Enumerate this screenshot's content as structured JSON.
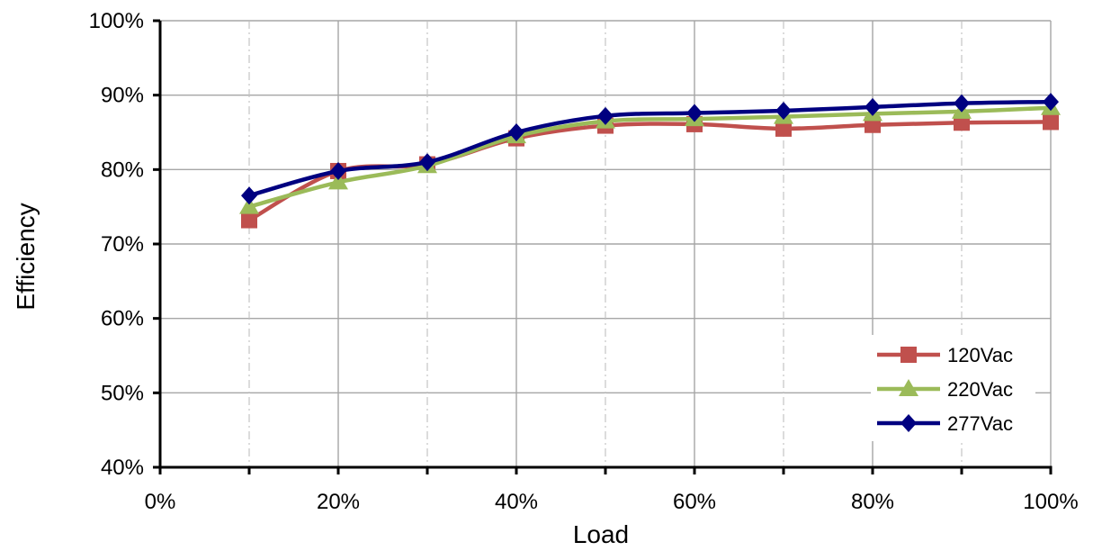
{
  "chart_data": {
    "type": "line",
    "xlabel": "Load",
    "ylabel": "Efficiency",
    "x": [
      10,
      20,
      30,
      40,
      50,
      60,
      70,
      80,
      90,
      100
    ],
    "xlim": [
      0,
      100
    ],
    "ylim": [
      40,
      100
    ],
    "x_ticks": [
      {
        "value": 0,
        "label": "0%"
      },
      {
        "value": 20,
        "label": "20%"
      },
      {
        "value": 40,
        "label": "40%"
      },
      {
        "value": 60,
        "label": "60%"
      },
      {
        "value": 80,
        "label": "80%"
      },
      {
        "value": 100,
        "label": "100%"
      }
    ],
    "y_ticks": [
      {
        "value": 40,
        "label": "40%"
      },
      {
        "value": 50,
        "label": "50%"
      },
      {
        "value": 60,
        "label": "60%"
      },
      {
        "value": 70,
        "label": "70%"
      },
      {
        "value": 80,
        "label": "80%"
      },
      {
        "value": 90,
        "label": "90%"
      },
      {
        "value": 100,
        "label": "100%"
      }
    ],
    "grid": true,
    "legend_position": "bottom-right",
    "series": [
      {
        "name": "120Vac",
        "marker": "square",
        "color": "#C0504D",
        "values": [
          73.2,
          79.8,
          80.7,
          84.2,
          85.9,
          86.1,
          85.5,
          86.0,
          86.3,
          86.4
        ]
      },
      {
        "name": "220Vac",
        "marker": "triangle",
        "color": "#9BBB59",
        "values": [
          75.0,
          78.3,
          80.5,
          84.5,
          86.5,
          86.8,
          87.1,
          87.5,
          87.8,
          88.3
        ]
      },
      {
        "name": "277Vac",
        "marker": "diamond",
        "color": "#000080",
        "values": [
          76.5,
          79.8,
          81.0,
          85.0,
          87.2,
          87.6,
          87.9,
          88.4,
          88.9,
          89.1
        ]
      }
    ]
  }
}
